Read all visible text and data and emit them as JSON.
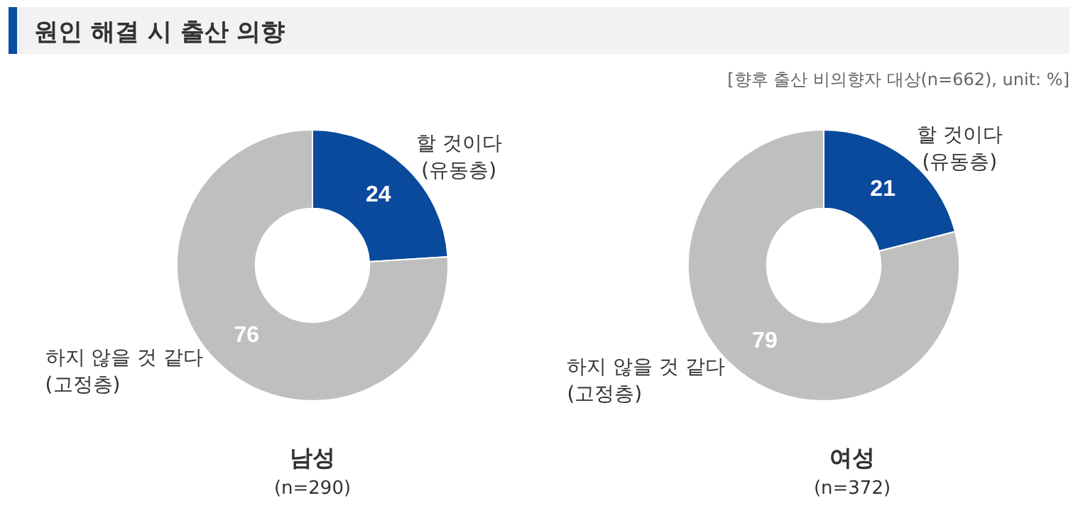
{
  "chart_data": [
    {
      "type": "donut",
      "title": "원인 해결 시 출산 의향",
      "xlabel": "남성",
      "annotations": [
        "(n=290)"
      ],
      "categories": [
        "할 것이다\n(유동층)",
        "하지 않을 것 같다\n(고정층)"
      ],
      "values": [
        24,
        76
      ],
      "colors": [
        "#0a4a9c",
        "#bfbfbf"
      ],
      "data_labels": true,
      "legend": false
    },
    {
      "type": "donut",
      "subtitle": "[향후 출산 비의향자 대상(n=662), unit: %]",
      "xlabel": "여성",
      "annotations": [
        "(n=372)"
      ],
      "categories": [
        "할 것이다\n(유동층)",
        "하지 않을 것 같다\n(고정층)"
      ],
      "values": [
        21,
        79
      ],
      "colors": [
        "#0a4a9c",
        "#bfbfbf"
      ],
      "data_labels": true,
      "legend": false
    }
  ]
}
